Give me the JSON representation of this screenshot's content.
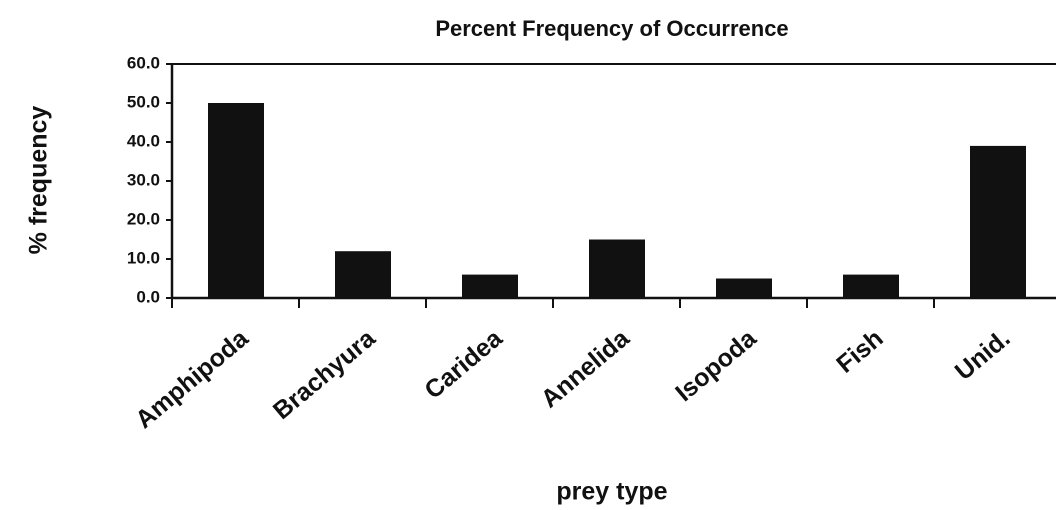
{
  "chart_data": {
    "type": "bar",
    "title": "Percent Frequency of Occurrence",
    "x_label": "prey type",
    "y_label": "% frequency",
    "categories": [
      "Amphipoda",
      "Brachyura",
      "Caridea",
      "Annelida",
      "Isopoda",
      "Fish",
      "Unid."
    ],
    "values": [
      50,
      12,
      6,
      15,
      5,
      6,
      39
    ],
    "color": "#111111",
    "ylim": [
      0,
      60
    ],
    "yticks": [
      {
        "value": 0,
        "label": "0.0"
      },
      {
        "value": 10,
        "label": "10.0"
      },
      {
        "value": 20,
        "label": "20.0"
      },
      {
        "value": 30,
        "label": "30.0"
      },
      {
        "value": 40,
        "label": "40.0"
      },
      {
        "value": 50,
        "label": "50.0"
      },
      {
        "value": 60,
        "label": "60.0"
      }
    ],
    "grid": false
  }
}
